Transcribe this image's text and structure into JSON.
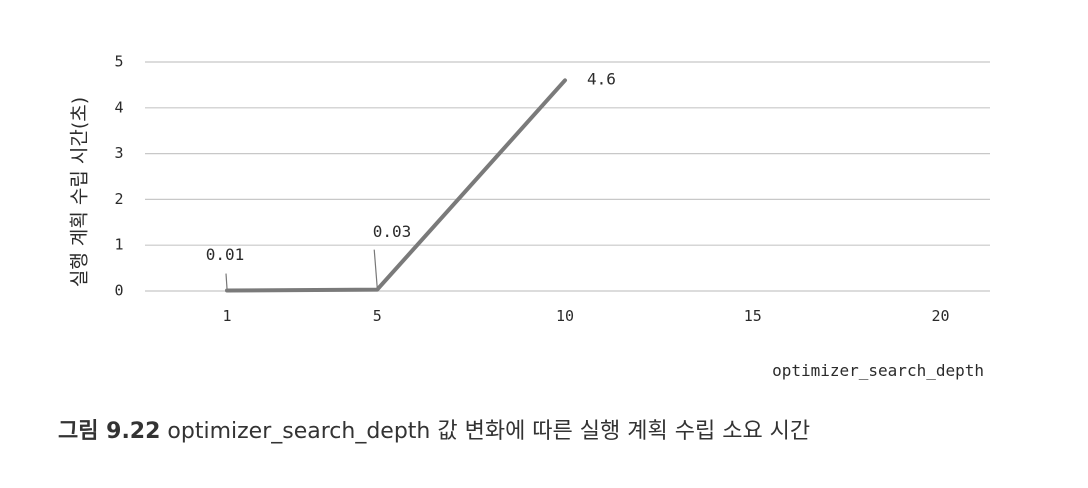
{
  "chart_data": {
    "type": "line",
    "ylabel": "실행 계획 수립 시간(초)",
    "xlabel": "optimizer_search_depth",
    "x_ticks": [
      1,
      5,
      10,
      15,
      20
    ],
    "y_ticks": [
      0,
      1,
      2,
      3,
      4,
      5
    ],
    "ylim": [
      0,
      5
    ],
    "grid": true,
    "series": [
      {
        "values": [
          {
            "x": 1,
            "y": 0.01,
            "label": "0.01"
          },
          {
            "x": 5,
            "y": 0.03,
            "label": "0.03"
          },
          {
            "x": 10,
            "y": 4.6,
            "label": "4.6"
          }
        ]
      }
    ],
    "line_color": "#7a7a7a"
  },
  "caption": {
    "prefix": "그림 9.22",
    "text": "optimizer_search_depth 값 변화에 따른 실행 계획 수립 소요 시간"
  }
}
